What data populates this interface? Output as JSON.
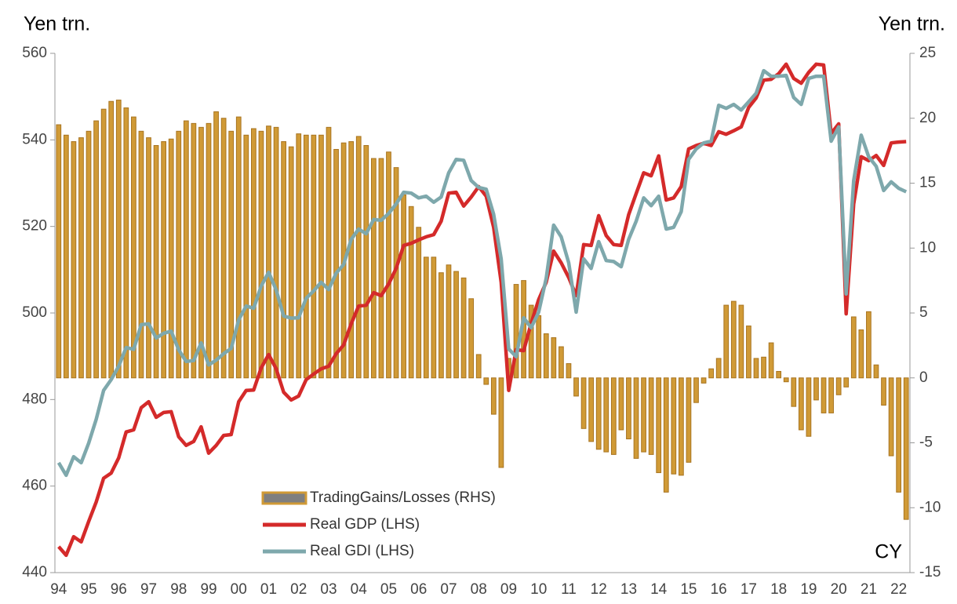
{
  "chart_data": {
    "type": "combo",
    "y_label": "Yen trn.",
    "y2_label": "Yen trn.",
    "annotation": "CY",
    "categories": [
      "94",
      null,
      null,
      null,
      "95",
      null,
      null,
      null,
      "96",
      null,
      null,
      null,
      "97",
      null,
      null,
      null,
      "98",
      null,
      null,
      null,
      "99",
      null,
      null,
      null,
      "00",
      null,
      null,
      null,
      "01",
      null,
      null,
      null,
      "02",
      null,
      null,
      null,
      "03",
      null,
      null,
      null,
      "04",
      null,
      null,
      null,
      "05",
      null,
      null,
      null,
      "06",
      null,
      null,
      null,
      "07",
      null,
      null,
      null,
      "08",
      null,
      null,
      null,
      "09",
      null,
      null,
      null,
      "10",
      null,
      null,
      null,
      "11",
      null,
      null,
      null,
      "12",
      null,
      null,
      null,
      "13",
      null,
      null,
      null,
      "14",
      null,
      null,
      null,
      "15",
      null,
      null,
      null,
      "16",
      null,
      null,
      null,
      "17",
      null,
      null,
      null,
      "18",
      null,
      null,
      null,
      "19",
      null,
      null,
      null,
      "20",
      null,
      null,
      null,
      "21",
      null,
      null,
      null,
      "22",
      null
    ],
    "ylim": [
      440,
      560
    ],
    "yticks": [
      440,
      460,
      480,
      500,
      520,
      540,
      560
    ],
    "y2lim": [
      -15,
      25
    ],
    "y2ticks": [
      -15,
      -10,
      -5,
      0,
      5,
      10,
      15,
      20,
      25
    ],
    "legend": "bottom-center",
    "series": [
      {
        "name": "TradingGains/Losses (RHS)",
        "type": "bar",
        "axis": "y2",
        "color": "#D09A36",
        "edge": "#A87420",
        "legend_color": "#7f7f7f",
        "values": [
          19.5,
          18.7,
          18.2,
          18.5,
          19.0,
          19.8,
          20.7,
          21.3,
          21.4,
          20.8,
          20.1,
          19.0,
          18.5,
          17.9,
          18.2,
          18.4,
          19.0,
          19.8,
          19.6,
          19.3,
          19.6,
          20.5,
          20.0,
          19.0,
          20.1,
          18.7,
          19.2,
          19.0,
          19.4,
          19.3,
          18.2,
          17.8,
          18.8,
          18.7,
          18.7,
          18.7,
          19.3,
          17.6,
          18.1,
          18.2,
          18.6,
          17.9,
          16.9,
          16.9,
          17.4,
          16.2,
          14.1,
          13.2,
          11.6,
          9.3,
          9.3,
          8.1,
          8.7,
          8.2,
          7.7,
          6.1,
          1.8,
          -0.5,
          -2.8,
          -6.9,
          1.5,
          7.2,
          7.5,
          5.6,
          4.8,
          3.4,
          3.1,
          2.4,
          1.1,
          -1.4,
          -3.9,
          -4.9,
          -5.5,
          -5.7,
          -5.9,
          -4.0,
          -4.7,
          -6.2,
          -5.7,
          -5.9,
          -7.3,
          -8.8,
          -7.4,
          -7.5,
          -6.5,
          -1.9,
          -0.4,
          0.7,
          1.5,
          5.6,
          5.9,
          5.6,
          4.0,
          1.5,
          1.6,
          2.7,
          0.5,
          -0.3,
          -2.2,
          -4.0,
          -4.5,
          -1.7,
          -2.7,
          -2.7,
          -1.3,
          -0.7,
          4.7,
          3.7,
          5.1,
          1.0,
          -2.1,
          -6.0,
          -8.8,
          -10.9
        ]
      },
      {
        "name": "Real GDP (LHS)",
        "type": "line",
        "color": "#D42A2A",
        "values": [
          446.0,
          444.0,
          448.3,
          447.1,
          451.8,
          456.3,
          461.8,
          463.0,
          466.5,
          472.5,
          473.0,
          478.1,
          479.5,
          475.9,
          477.0,
          477.2,
          471.4,
          469.4,
          470.3,
          473.7,
          467.6,
          469.4,
          471.7,
          471.9,
          479.5,
          482.1,
          482.2,
          487.3,
          490.4,
          487.1,
          481.7,
          479.9,
          480.8,
          484.6,
          485.9,
          487.1,
          487.7,
          490.6,
          492.6,
          497.5,
          501.6,
          501.8,
          504.7,
          504.0,
          506.7,
          510.3,
          515.6,
          516.1,
          516.9,
          517.6,
          518.1,
          521.2,
          527.7,
          527.9,
          524.7,
          526.8,
          529.2,
          527.0,
          519.8,
          507.1,
          482.1,
          491.5,
          491.3,
          497.6,
          503.1,
          507.1,
          514.3,
          511.6,
          508.2,
          504.0,
          515.8,
          515.6,
          522.5,
          517.9,
          515.8,
          515.6,
          522.7,
          527.6,
          532.4,
          531.7,
          536.3,
          526.1,
          526.6,
          529.2,
          537.9,
          538.7,
          539.2,
          538.7,
          541.9,
          541.3,
          542.1,
          543.0,
          547.5,
          549.7,
          553.8,
          554.0,
          555.3,
          557.5,
          554.2,
          553.1,
          555.6,
          557.5,
          557.3,
          541.5,
          543.7,
          499.8,
          525.2,
          536.1,
          535.2,
          536.4,
          534.1,
          539.3,
          539.5,
          539.6
        ]
      },
      {
        "name": "Real GDI (LHS)",
        "type": "line",
        "color": "#7EA8AC",
        "values": [
          465.4,
          462.5,
          466.8,
          465.4,
          469.9,
          475.4,
          482.1,
          484.6,
          487.7,
          492.0,
          491.6,
          497.3,
          497.5,
          494.2,
          495.3,
          495.8,
          491.5,
          488.8,
          489.0,
          493.1,
          488.0,
          489.1,
          490.6,
          491.8,
          498.4,
          501.6,
          501.1,
          506.2,
          509.4,
          505.3,
          499.3,
          498.8,
          498.9,
          503.4,
          505.1,
          507.1,
          505.4,
          509.2,
          511.2,
          517.0,
          519.4,
          518.3,
          521.6,
          521.4,
          523.0,
          525.2,
          527.9,
          527.7,
          526.6,
          527.0,
          525.6,
          526.8,
          532.4,
          535.5,
          535.3,
          530.6,
          529.0,
          528.6,
          522.8,
          512.5,
          491.7,
          489.9,
          498.9,
          496.6,
          500.2,
          508.0,
          520.3,
          517.6,
          511.6,
          500.2,
          512.5,
          510.3,
          516.5,
          512.1,
          511.9,
          510.7,
          517.0,
          521.2,
          526.6,
          524.8,
          527.0,
          519.4,
          519.8,
          523.4,
          535.5,
          537.9,
          539.3,
          539.7,
          548.0,
          547.3,
          548.2,
          546.9,
          548.8,
          550.8,
          556.0,
          554.7,
          554.7,
          554.9,
          549.8,
          548.2,
          554.2,
          554.7,
          554.7,
          539.7,
          543.0,
          504.4,
          530.6,
          541.1,
          536.1,
          533.9,
          528.3,
          530.3,
          528.8,
          528.0
        ]
      }
    ]
  }
}
